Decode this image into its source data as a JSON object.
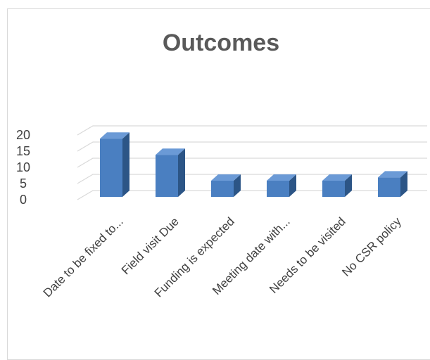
{
  "chart_data": {
    "type": "bar",
    "title": "Outcomes",
    "categories": [
      "Date to be fixed to...",
      "Field visit Due",
      "Funding is expected",
      "Meeting date with...",
      "Needs to be visited",
      "No CSR policy"
    ],
    "values": [
      18,
      13,
      5,
      5,
      5,
      6
    ],
    "yticks": [
      0,
      5,
      10,
      15,
      20
    ],
    "ylim": [
      0,
      20
    ],
    "xlabel": "",
    "ylabel": "",
    "grid": true,
    "legend": "none",
    "colors": {
      "bar_front": "#4a7fc1",
      "bar_side": "#2c5586",
      "bar_top": "#6b9ad6",
      "grid": "#d9d9d9",
      "axis_text": "#404040",
      "title": "#595959"
    }
  }
}
